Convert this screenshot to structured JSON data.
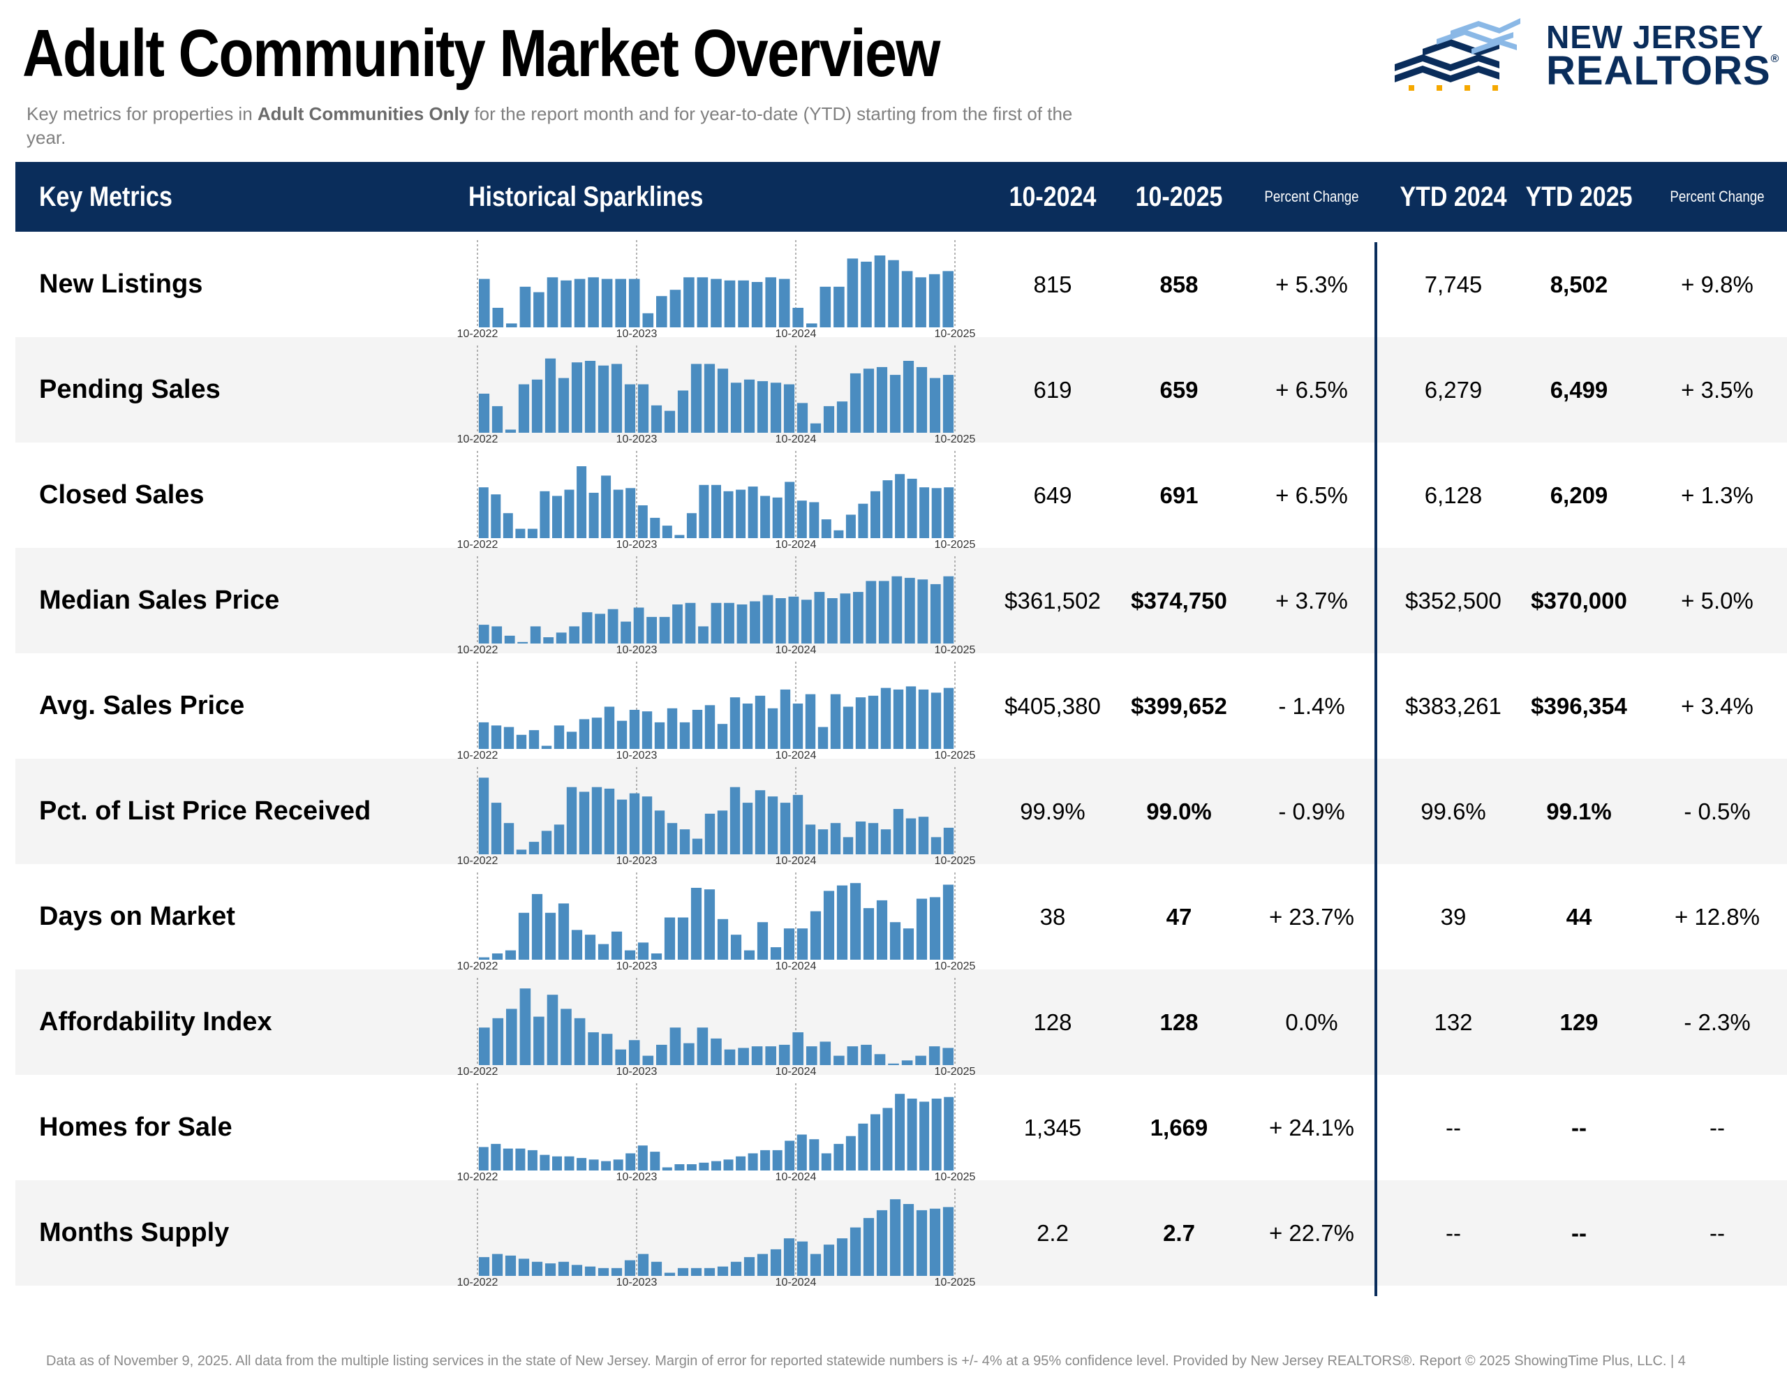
{
  "title": "Adult Community Market Overview",
  "subtitle": {
    "before": "Key metrics for properties in ",
    "bold": "Adult Communities Only",
    "after": " for the report month and for year-to-date (YTD) starting from the first of the year."
  },
  "logo": {
    "line1": "NEW JERSEY",
    "line2": "REALTORS",
    "reg": "®"
  },
  "colors": {
    "navy": "#0a2d5b",
    "bar": "#4a8cc0",
    "row_alt": "#f4f4f4",
    "logo_light": "#8ab8e6",
    "logo_gold": "#f5a800"
  },
  "header": {
    "key_metrics": "Key Metrics",
    "sparklines": "Historical Sparklines",
    "m1": "10-2024",
    "m2": "10-2025",
    "pct1": "Percent Change",
    "ytd1": "YTD 2024",
    "ytd2": "YTD 2025",
    "pct2": "Percent Change"
  },
  "spark_labels": [
    "10-2022",
    "10-2023",
    "10-2024",
    "10-2025"
  ],
  "rows": [
    {
      "metric": "New Listings",
      "v2024": "815",
      "v2025": "858",
      "pct": "+ 5.3%",
      "ytd2024": "7,745",
      "ytd2025": "8,502",
      "ytdpct": "+ 9.8%",
      "spark": [
        62,
        25,
        5,
        52,
        45,
        64,
        60,
        62,
        64,
        62,
        62,
        62,
        18,
        40,
        48,
        64,
        64,
        62,
        60,
        60,
        58,
        64,
        62,
        25,
        5,
        52,
        52,
        88,
        84,
        92,
        86,
        72,
        64,
        68,
        72
      ]
    },
    {
      "metric": "Pending Sales",
      "v2024": "619",
      "v2025": "659",
      "pct": "+ 6.5%",
      "ytd2024": "6,279",
      "ytd2025": "6,499",
      "ytdpct": "+ 3.5%",
      "spark": [
        50,
        34,
        4,
        62,
        68,
        95,
        70,
        90,
        92,
        86,
        88,
        62,
        62,
        35,
        28,
        54,
        88,
        88,
        82,
        64,
        68,
        66,
        64,
        62,
        38,
        12,
        34,
        40,
        76,
        82,
        84,
        74,
        92,
        84,
        70,
        74
      ]
    },
    {
      "metric": "Closed Sales",
      "v2024": "649",
      "v2025": "691",
      "pct": "+ 6.5%",
      "ytd2024": "6,128",
      "ytd2025": "6,209",
      "ytdpct": "+ 1.3%",
      "spark": [
        65,
        56,
        32,
        12,
        12,
        60,
        54,
        62,
        92,
        58,
        80,
        62,
        64,
        42,
        26,
        16,
        4,
        32,
        68,
        68,
        60,
        62,
        66,
        54,
        52,
        72,
        48,
        46,
        24,
        10,
        30,
        44,
        60,
        74,
        82,
        76,
        65,
        64,
        65
      ]
    },
    {
      "metric": "Median Sales Price",
      "v2024": "$361,502",
      "v2025": "$374,750",
      "pct": "+ 3.7%",
      "ytd2024": "$352,500",
      "ytd2025": "$370,000",
      "ytdpct": "+ 5.0%",
      "spark": [
        24,
        22,
        10,
        2,
        22,
        8,
        14,
        22,
        40,
        38,
        44,
        28,
        46,
        34,
        34,
        50,
        52,
        22,
        52,
        52,
        50,
        54,
        62,
        58,
        60,
        56,
        66,
        58,
        64,
        66,
        80,
        80,
        86,
        84,
        82,
        76,
        86
      ]
    },
    {
      "metric": "Avg. Sales Price",
      "v2024": "$405,380",
      "v2025": "$399,652",
      "pct": "- 1.4%",
      "ytd2024": "$383,261",
      "ytd2025": "$396,354",
      "ytdpct": "+ 3.4%",
      "spark": [
        34,
        30,
        28,
        18,
        24,
        4,
        30,
        22,
        38,
        40,
        54,
        36,
        50,
        48,
        34,
        52,
        34,
        50,
        56,
        32,
        66,
        58,
        68,
        52,
        76,
        58,
        70,
        28,
        70,
        54,
        66,
        68,
        78,
        76,
        80,
        76,
        72,
        78
      ]
    },
    {
      "metric": "Pct. of List Price Received",
      "v2024": "99.9%",
      "v2025": "99.0%",
      "pct": "- 0.9%",
      "ytd2024": "99.6%",
      "ytd2025": "99.1%",
      "ytdpct": "- 0.5%",
      "spark": [
        98,
        66,
        40,
        6,
        16,
        30,
        38,
        86,
        80,
        86,
        84,
        70,
        78,
        74,
        56,
        40,
        32,
        20,
        52,
        56,
        86,
        66,
        82,
        74,
        66,
        76,
        38,
        32,
        40,
        22,
        42,
        40,
        32,
        58,
        46,
        48,
        22,
        34
      ]
    },
    {
      "metric": "Days on Market",
      "v2024": "38",
      "v2025": "47",
      "pct": "+ 23.7%",
      "ytd2024": "39",
      "ytd2025": "44",
      "ytdpct": "+ 12.8%",
      "spark": [
        3,
        8,
        12,
        60,
        84,
        60,
        72,
        38,
        32,
        20,
        36,
        12,
        22,
        8,
        54,
        54,
        92,
        90,
        52,
        32,
        12,
        48,
        16,
        40,
        40,
        62,
        88,
        95,
        98,
        66,
        76,
        48,
        40,
        78,
        80,
        96
      ]
    },
    {
      "metric": "Affordability Index",
      "v2024": "128",
      "v2025": "128",
      "pct": "0.0%",
      "ytd2024": "132",
      "ytd2025": "129",
      "ytdpct": "- 2.3%",
      "spark": [
        48,
        60,
        72,
        98,
        62,
        90,
        72,
        60,
        42,
        40,
        20,
        32,
        12,
        26,
        48,
        28,
        48,
        34,
        20,
        22,
        24,
        24,
        26,
        42,
        24,
        30,
        12,
        24,
        26,
        14,
        2,
        6,
        12,
        24,
        22
      ]
    },
    {
      "metric": "Homes for Sale",
      "v2024": "1,345",
      "v2025": "1,669",
      "pct": "+ 24.1%",
      "ytd2024": "--",
      "ytd2025": "--",
      "ytdpct": "--",
      "spark": [
        30,
        34,
        28,
        28,
        26,
        20,
        18,
        18,
        16,
        14,
        12,
        14,
        22,
        32,
        24,
        4,
        8,
        8,
        10,
        12,
        14,
        18,
        22,
        26,
        26,
        38,
        46,
        40,
        22,
        34,
        44,
        60,
        72,
        80,
        98,
        92,
        88,
        92,
        94
      ]
    },
    {
      "metric": "Months Supply",
      "v2024": "2.2",
      "v2025": "2.7",
      "pct": "+ 22.7%",
      "ytd2024": "--",
      "ytd2025": "--",
      "ytdpct": "--",
      "spark": [
        24,
        28,
        26,
        22,
        18,
        16,
        18,
        14,
        12,
        10,
        10,
        20,
        28,
        18,
        4,
        10,
        10,
        10,
        12,
        18,
        24,
        28,
        34,
        48,
        44,
        28,
        40,
        48,
        62,
        74,
        84,
        98,
        92,
        84,
        86,
        88
      ]
    }
  ],
  "footer": "Data as of November 9, 2025. All data from the multiple listing services in the state of New Jersey. Margin of error for reported statewide numbers is +/- 4% at a 95% confidence level. Provided by New Jersey REALTORS®. Report © 2025 ShowingTime Plus, LLC. |  4"
}
